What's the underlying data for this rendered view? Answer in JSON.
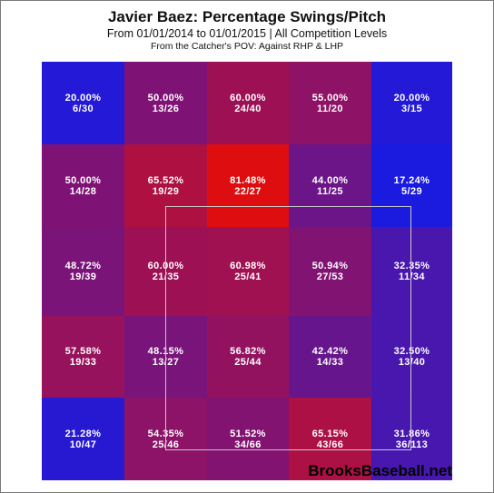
{
  "chart_data": {
    "type": "heatmap",
    "title": "Javier Baez: Percentage Swings/Pitch",
    "subtitle": "From 01/01/2014 to 01/01/2015 | All Competition Levels",
    "subtitle2": "From the Catcher's POV:  Against RHP & LHP",
    "cells": [
      [
        {
          "pct": "20.00%",
          "frac": "6/30"
        },
        {
          "pct": "50.00%",
          "frac": "13/26"
        },
        {
          "pct": "60.00%",
          "frac": "24/40"
        },
        {
          "pct": "55.00%",
          "frac": "11/20"
        },
        {
          "pct": "20.00%",
          "frac": "3/15"
        }
      ],
      [
        {
          "pct": "50.00%",
          "frac": "14/28"
        },
        {
          "pct": "65.52%",
          "frac": "19/29"
        },
        {
          "pct": "81.48%",
          "frac": "22/27"
        },
        {
          "pct": "44.00%",
          "frac": "11/25"
        },
        {
          "pct": "17.24%",
          "frac": "5/29"
        }
      ],
      [
        {
          "pct": "48.72%",
          "frac": "19/39"
        },
        {
          "pct": "60.00%",
          "frac": "21/35"
        },
        {
          "pct": "60.98%",
          "frac": "25/41"
        },
        {
          "pct": "50.94%",
          "frac": "27/53"
        },
        {
          "pct": "32.35%",
          "frac": "11/34"
        }
      ],
      [
        {
          "pct": "57.58%",
          "frac": "19/33"
        },
        {
          "pct": "48.15%",
          "frac": "13/27"
        },
        {
          "pct": "56.82%",
          "frac": "25/44"
        },
        {
          "pct": "42.42%",
          "frac": "14/33"
        },
        {
          "pct": "32.50%",
          "frac": "13/40"
        }
      ],
      [
        {
          "pct": "21.28%",
          "frac": "10/47"
        },
        {
          "pct": "54.35%",
          "frac": "25/46"
        },
        {
          "pct": "51.52%",
          "frac": "34/66"
        },
        {
          "pct": "65.15%",
          "frac": "43/66"
        },
        {
          "pct": "31.86%",
          "frac": "36/113"
        }
      ]
    ],
    "colors": {
      "low": "#1a1ae0",
      "high": "#e00d0d",
      "text": "#ffffff",
      "strike_zone_border": "#c8c8c8"
    }
  },
  "watermark": "BrooksBaseball.net"
}
